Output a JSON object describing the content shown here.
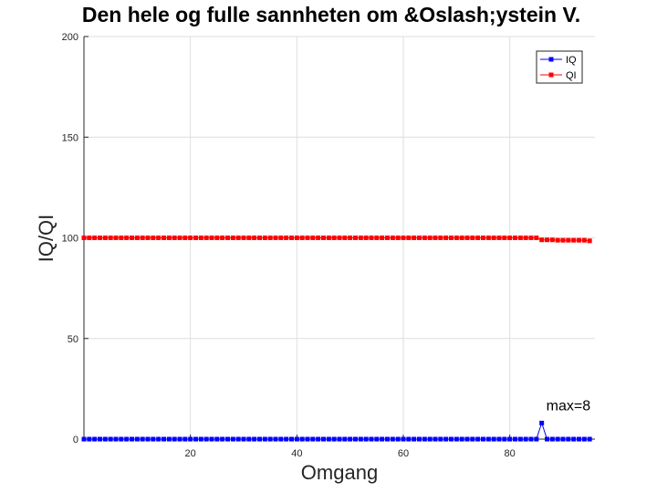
{
  "chart_data": {
    "type": "line",
    "title": "Den hele og fulle sannheten om &Oslash;ystein V.",
    "xlabel": "Omgang",
    "ylabel": "IQ/QI",
    "xlim": [
      0,
      96
    ],
    "ylim": [
      0,
      200
    ],
    "xticks": [
      20,
      40,
      60,
      80
    ],
    "yticks": [
      0,
      50,
      100,
      150,
      200
    ],
    "grid": true,
    "legend_position": "top-right",
    "x": [
      0,
      1,
      2,
      3,
      4,
      5,
      6,
      7,
      8,
      9,
      10,
      11,
      12,
      13,
      14,
      15,
      16,
      17,
      18,
      19,
      20,
      21,
      22,
      23,
      24,
      25,
      26,
      27,
      28,
      29,
      30,
      31,
      32,
      33,
      34,
      35,
      36,
      37,
      38,
      39,
      40,
      41,
      42,
      43,
      44,
      45,
      46,
      47,
      48,
      49,
      50,
      51,
      52,
      53,
      54,
      55,
      56,
      57,
      58,
      59,
      60,
      61,
      62,
      63,
      64,
      65,
      66,
      67,
      68,
      69,
      70,
      71,
      72,
      73,
      74,
      75,
      76,
      77,
      78,
      79,
      80,
      81,
      82,
      83,
      84,
      85,
      86,
      87,
      88,
      89,
      90,
      91,
      92,
      93,
      94,
      95
    ],
    "series": [
      {
        "name": "IQ",
        "color": "#0000ff",
        "values": [
          0,
          0,
          0,
          0,
          0,
          0,
          0,
          0,
          0,
          0,
          0,
          0,
          0,
          0,
          0,
          0,
          0,
          0,
          0,
          0,
          0,
          0,
          0,
          0,
          0,
          0,
          0,
          0,
          0,
          0,
          0,
          0,
          0,
          0,
          0,
          0,
          0,
          0,
          0,
          0,
          0,
          0,
          0,
          0,
          0,
          0,
          0,
          0,
          0,
          0,
          0,
          0,
          0,
          0,
          0,
          0,
          0,
          0,
          0,
          0,
          0,
          0,
          0,
          0,
          0,
          0,
          0,
          0,
          0,
          0,
          0,
          0,
          0,
          0,
          0,
          0,
          0,
          0,
          0,
          0,
          0,
          0,
          0,
          0,
          0,
          0,
          8,
          0,
          0,
          0,
          0,
          0,
          0,
          0,
          0,
          0
        ]
      },
      {
        "name": "QI",
        "color": "#ff0000",
        "values": [
          100,
          100,
          100,
          100,
          100,
          100,
          100,
          100,
          100,
          100,
          100,
          100,
          100,
          100,
          100,
          100,
          100,
          100,
          100,
          100,
          100,
          100,
          100,
          100,
          100,
          100,
          100,
          100,
          100,
          100,
          100,
          100,
          100,
          100,
          100,
          100,
          100,
          100,
          100,
          100,
          100,
          100,
          100,
          100,
          100,
          100,
          100,
          100,
          100,
          100,
          100,
          100,
          100,
          100,
          100,
          100,
          100,
          100,
          100,
          100,
          100,
          100,
          100,
          100,
          100,
          100,
          100,
          100,
          100,
          100,
          100,
          100,
          100,
          100,
          100,
          100,
          100,
          100,
          100,
          100,
          100,
          100,
          100,
          100,
          100,
          100,
          99,
          99,
          99,
          98.8,
          98.8,
          98.8,
          98.8,
          98.8,
          98.8,
          98.5
        ]
      }
    ],
    "annotations": [
      {
        "text": "max=8",
        "x": 86,
        "y": 8
      }
    ]
  }
}
